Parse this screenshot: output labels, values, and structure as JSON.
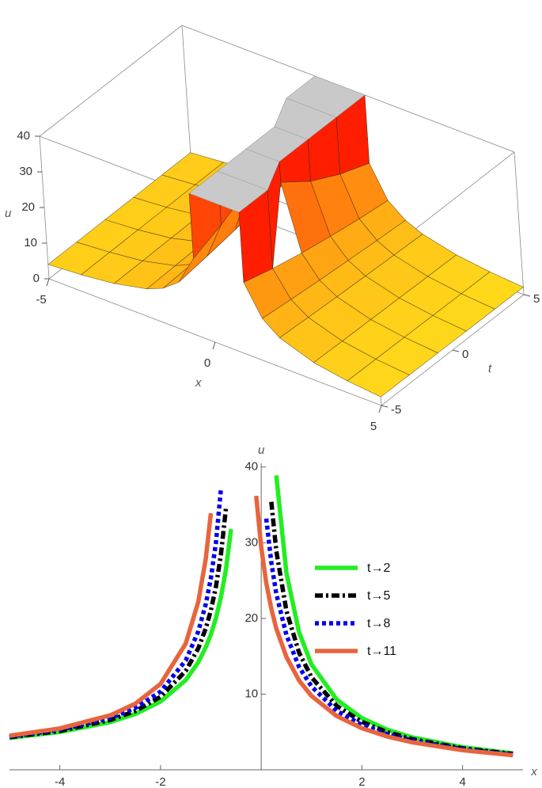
{
  "chart_data": [
    {
      "type": "surface",
      "x_label": "x",
      "t_label": "t",
      "z_label": "u",
      "x": [
        -5,
        -4,
        -3,
        -2,
        -1.5,
        -1,
        -0.5,
        0,
        0.5,
        1,
        1.5,
        2,
        3,
        4,
        5
      ],
      "t": [
        -5,
        -3,
        -1,
        1,
        3,
        5
      ],
      "z": [
        [
          4.02,
          4.69,
          5.77,
          7.83,
          9.77,
          13.29,
          21.73,
          null,
          null,
          20.33,
          11.98,
          8.32,
          4.93,
          3.34,
          2.41
        ],
        [
          4.07,
          4.77,
          5.91,
          8.13,
          10.27,
          14.33,
          24.91,
          null,
          null,
          17.99,
          11.07,
          7.84,
          4.73,
          3.23,
          2.34
        ],
        [
          4.13,
          4.85,
          6.06,
          8.46,
          10.85,
          15.56,
          29.25,
          null,
          34.19,
          16.11,
          10.28,
          7.4,
          4.55,
          3.13,
          2.28
        ],
        [
          4.18,
          4.94,
          6.22,
          8.82,
          11.49,
          17.04,
          35.55,
          null,
          28.27,
          14.57,
          9.59,
          7.01,
          4.37,
          3.03,
          2.21
        ],
        [
          4.24,
          5.04,
          6.39,
          9.22,
          12.24,
          18.87,
          null,
          null,
          24.05,
          13.28,
          8.97,
          6.65,
          4.2,
          2.93,
          2.15
        ],
        [
          4.3,
          5.14,
          6.57,
          9.67,
          13.09,
          21.17,
          null,
          null,
          20.89,
          12.19,
          8.42,
          6.32,
          4.05,
          2.84,
          2.09
        ]
      ],
      "xlim": [
        -5,
        5
      ],
      "tlim": [
        -5,
        5
      ],
      "zlim": [
        0,
        40
      ],
      "xticks": [
        -5,
        0,
        5
      ],
      "tticks": [
        -5,
        0,
        5
      ],
      "zticks": [
        0,
        10,
        20,
        30,
        40
      ],
      "colors": {
        "low": "#ffe41c",
        "high": "#ff1e00",
        "clip": "#c9c9c9"
      }
    },
    {
      "type": "line",
      "x_label": "x",
      "y_label": "u",
      "x": [
        -5,
        -4,
        -3,
        -2.5,
        -2,
        -1.5,
        -1.25,
        -1.1,
        -1,
        -0.9,
        -0.8,
        -0.7,
        -0.6,
        -0.5,
        -0.3,
        -0.1,
        0,
        0.1,
        0.2,
        0.3,
        0.5,
        0.75,
        1,
        1.5,
        2,
        2.5,
        3,
        4,
        5
      ],
      "series": [
        {
          "name": "t→2",
          "color": "#22ee22",
          "style": "solid",
          "values": [
            4.21,
            4.99,
            6.3,
            7.38,
            9.02,
            11.85,
            14.21,
            16.2,
            17.9,
            20.05,
            22.8,
            26.5,
            31.8,
            null,
            null,
            null,
            null,
            null,
            null,
            38.9,
            26.0,
            18.2,
            13.9,
            9.27,
            6.82,
            5.31,
            4.28,
            2.98,
            2.18
          ]
        },
        {
          "name": "t→5",
          "color": "#000000",
          "style": "dashdot",
          "values": [
            4.3,
            5.13,
            6.57,
            7.76,
            9.65,
            13.05,
            16.05,
            18.7,
            21.06,
            24.17,
            28.42,
            34.6,
            null,
            null,
            null,
            null,
            null,
            null,
            35.4,
            28.9,
            21.0,
            15.5,
            12.2,
            8.45,
            6.33,
            4.99,
            4.05,
            2.84,
            2.09
          ]
        },
        {
          "name": "t→8",
          "color": "#0000ee",
          "style": "dotted",
          "values": [
            4.39,
            5.27,
            6.83,
            8.17,
            10.33,
            14.44,
            18.29,
            21.9,
            25.3,
            30.0,
            37.05,
            null,
            null,
            null,
            null,
            null,
            null,
            33.2,
            27.4,
            23.25,
            17.8,
            13.6,
            11.0,
            7.79,
            5.93,
            4.71,
            3.86,
            2.73,
            2.02
          ]
        },
        {
          "name": "t→11",
          "color": "#e8643c",
          "style": "solid",
          "values": [
            4.5,
            5.46,
            7.2,
            8.74,
            11.34,
            16.67,
            22.2,
            27.9,
            33.9,
            null,
            null,
            null,
            null,
            null,
            null,
            36.2,
            29.45,
            24.7,
            21.3,
            18.66,
            14.9,
            11.82,
            9.74,
            7.1,
            5.49,
            4.41,
            3.63,
            2.59,
            1.93
          ]
        }
      ],
      "xlim": [
        -5,
        5.2
      ],
      "ylim": [
        0,
        40.5
      ],
      "xticks": [
        -4,
        -2,
        2,
        4
      ],
      "yticks": [
        10,
        20,
        30,
        40
      ],
      "legend": "right"
    }
  ]
}
